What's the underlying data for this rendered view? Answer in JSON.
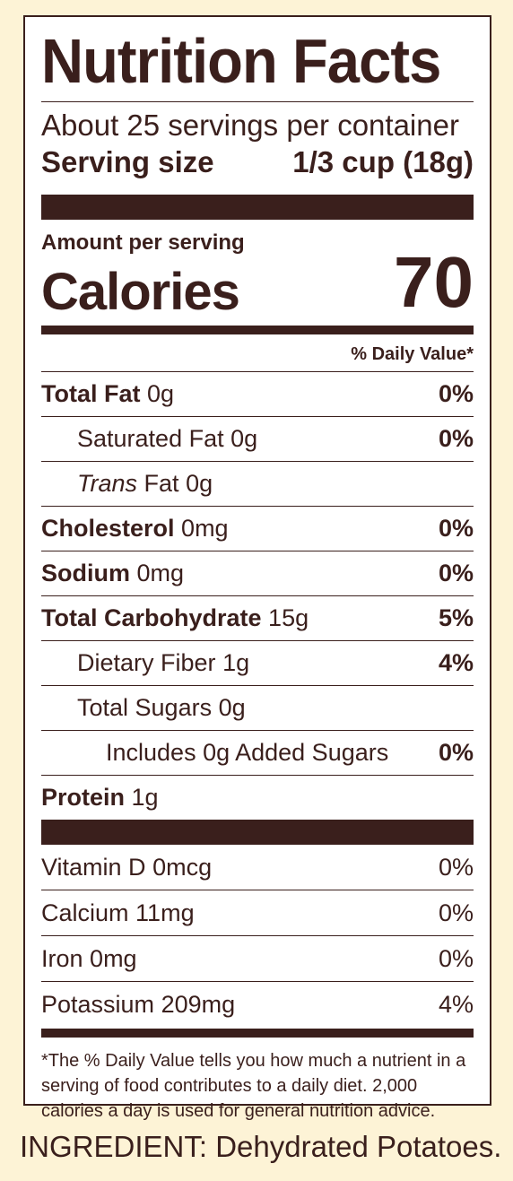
{
  "label": {
    "title": "Nutrition Facts",
    "servings_per_container": "About 25 servings per container",
    "serving_size_label": "Serving size",
    "serving_size_value": "1/3 cup (18g)",
    "amount_per_serving": "Amount per serving",
    "calories_label": "Calories",
    "calories_value": "70",
    "daily_value_header": "% Daily Value*",
    "nutrients": [
      {
        "name": "Total Fat",
        "amount": "0g",
        "dv": "0%"
      },
      {
        "name": "Saturated Fat",
        "amount": "0g",
        "dv": "0%"
      },
      {
        "name_italic": "Trans",
        "name": "Fat",
        "amount": "0g",
        "dv": ""
      },
      {
        "name": "Cholesterol",
        "amount": "0mg",
        "dv": "0%"
      },
      {
        "name": "Sodium",
        "amount": "0mg",
        "dv": "0%"
      },
      {
        "name": "Total Carbohydrate",
        "amount": "15g",
        "dv": "5%"
      },
      {
        "name": "Dietary Fiber",
        "amount": "1g",
        "dv": "4%"
      },
      {
        "name": "Total Sugars",
        "amount": "0g",
        "dv": ""
      },
      {
        "name": "Includes 0g Added Sugars",
        "amount": "",
        "dv": "0%"
      },
      {
        "name": "Protein",
        "amount": "1g",
        "dv": ""
      }
    ],
    "vitamins": [
      {
        "name": "Vitamin D",
        "amount": "0mcg",
        "dv": "0%"
      },
      {
        "name": "Calcium",
        "amount": "11mg",
        "dv": "0%"
      },
      {
        "name": "Iron",
        "amount": "0mg",
        "dv": "0%"
      },
      {
        "name": "Potassium",
        "amount": "209mg",
        "dv": "4%"
      }
    ],
    "footnote": "*The % Daily Value tells you how much a nutrient in a serving of food contributes to a daily diet. 2,000 calories a day is used for general nutrition advice."
  },
  "ingredients": "INGREDIENT: Dehydrated Potatoes.",
  "colors": {
    "background": "#fdf3d6",
    "ink": "#3a1f1c",
    "panel": "#ffffff"
  }
}
